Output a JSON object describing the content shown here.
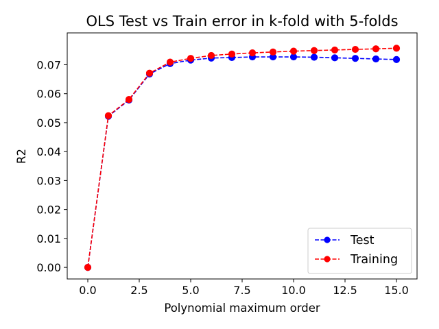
{
  "chart_data": {
    "type": "line",
    "title": "OLS Test vs Train error in k-fold with 5-folds",
    "xlabel": "Polynomial maximum order",
    "ylabel": "R2",
    "xlim": [
      -1,
      16
    ],
    "ylim": [
      -0.004,
      0.081
    ],
    "xticks": [
      0.0,
      2.5,
      5.0,
      7.5,
      10.0,
      12.5,
      15.0
    ],
    "xtick_labels": [
      "0.0",
      "2.5",
      "5.0",
      "7.5",
      "10.0",
      "12.5",
      "15.0"
    ],
    "yticks": [
      0.0,
      0.01,
      0.02,
      0.03,
      0.04,
      0.05,
      0.06,
      0.07
    ],
    "ytick_labels": [
      "0.00",
      "0.01",
      "0.02",
      "0.03",
      "0.04",
      "0.05",
      "0.06",
      "0.07"
    ],
    "grid": false,
    "legend_position": "lower-right",
    "x": [
      0,
      1,
      2,
      3,
      4,
      5,
      6,
      7,
      8,
      9,
      10,
      11,
      12,
      13,
      14,
      15
    ],
    "series": [
      {
        "name": "Test",
        "color": "#0000ff",
        "linestyle": "dashed",
        "marker": "circle",
        "values": [
          0.0,
          0.0522,
          0.0578,
          0.0668,
          0.0704,
          0.0716,
          0.0723,
          0.0725,
          0.0727,
          0.0727,
          0.0727,
          0.0726,
          0.0724,
          0.0722,
          0.072,
          0.0718
        ]
      },
      {
        "name": "Training",
        "color": "#ff0000",
        "linestyle": "dashed",
        "marker": "circle",
        "values": [
          0.0,
          0.0524,
          0.058,
          0.0671,
          0.0709,
          0.0722,
          0.0732,
          0.0737,
          0.0741,
          0.0744,
          0.0747,
          0.0749,
          0.0751,
          0.0753,
          0.0755,
          0.0757
        ]
      }
    ]
  }
}
